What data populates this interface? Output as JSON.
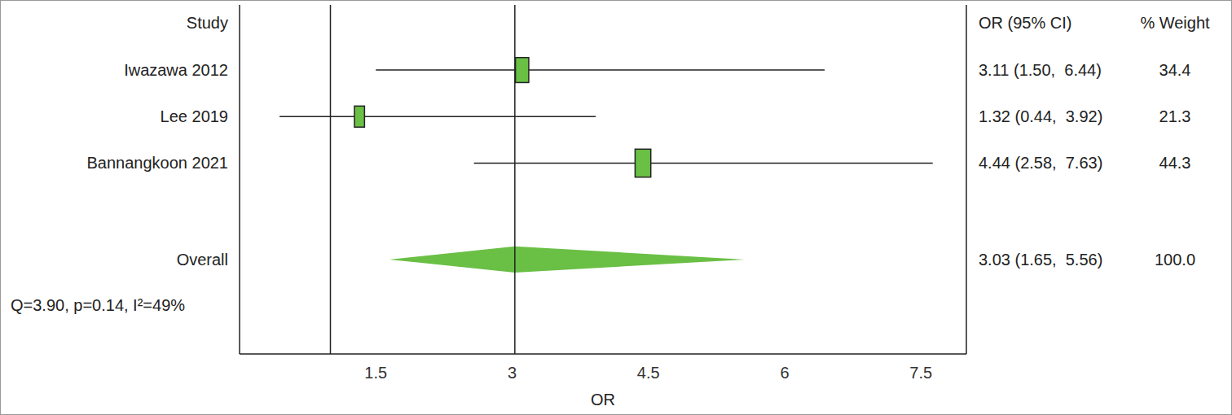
{
  "chart_data": {
    "type": "forest",
    "columns": [
      "Study",
      "OR (95% CI)",
      "% Weight"
    ],
    "categories": [
      "Iwazawa 2012",
      "Lee 2019",
      "Bannangkoon 2021"
    ],
    "values": [
      3.11,
      1.32,
      4.44
    ],
    "lower": [
      1.5,
      0.44,
      2.58
    ],
    "upper": [
      6.44,
      3.92,
      7.63
    ],
    "value_labels": [
      "3.11 (1.50,  6.44)",
      "1.32 (0.44,  3.92)",
      "4.44 (2.58,  7.63)"
    ],
    "weights": [
      34.4,
      21.3,
      44.3
    ],
    "overall": {
      "name": "Overall",
      "value": 3.03,
      "lower": 1.65,
      "upper": 5.56,
      "value_label": "3.03 (1.65,  5.56)",
      "weight_label": "100.0"
    },
    "heterogeneity": "Q=3.90, p=0.14, I²=49%",
    "reference_line": 1,
    "x_label": "OR",
    "xlim": [
      0,
      8
    ],
    "xticks": [
      1.5,
      3,
      4.5,
      6,
      7.5
    ],
    "color": "#6abf45"
  }
}
